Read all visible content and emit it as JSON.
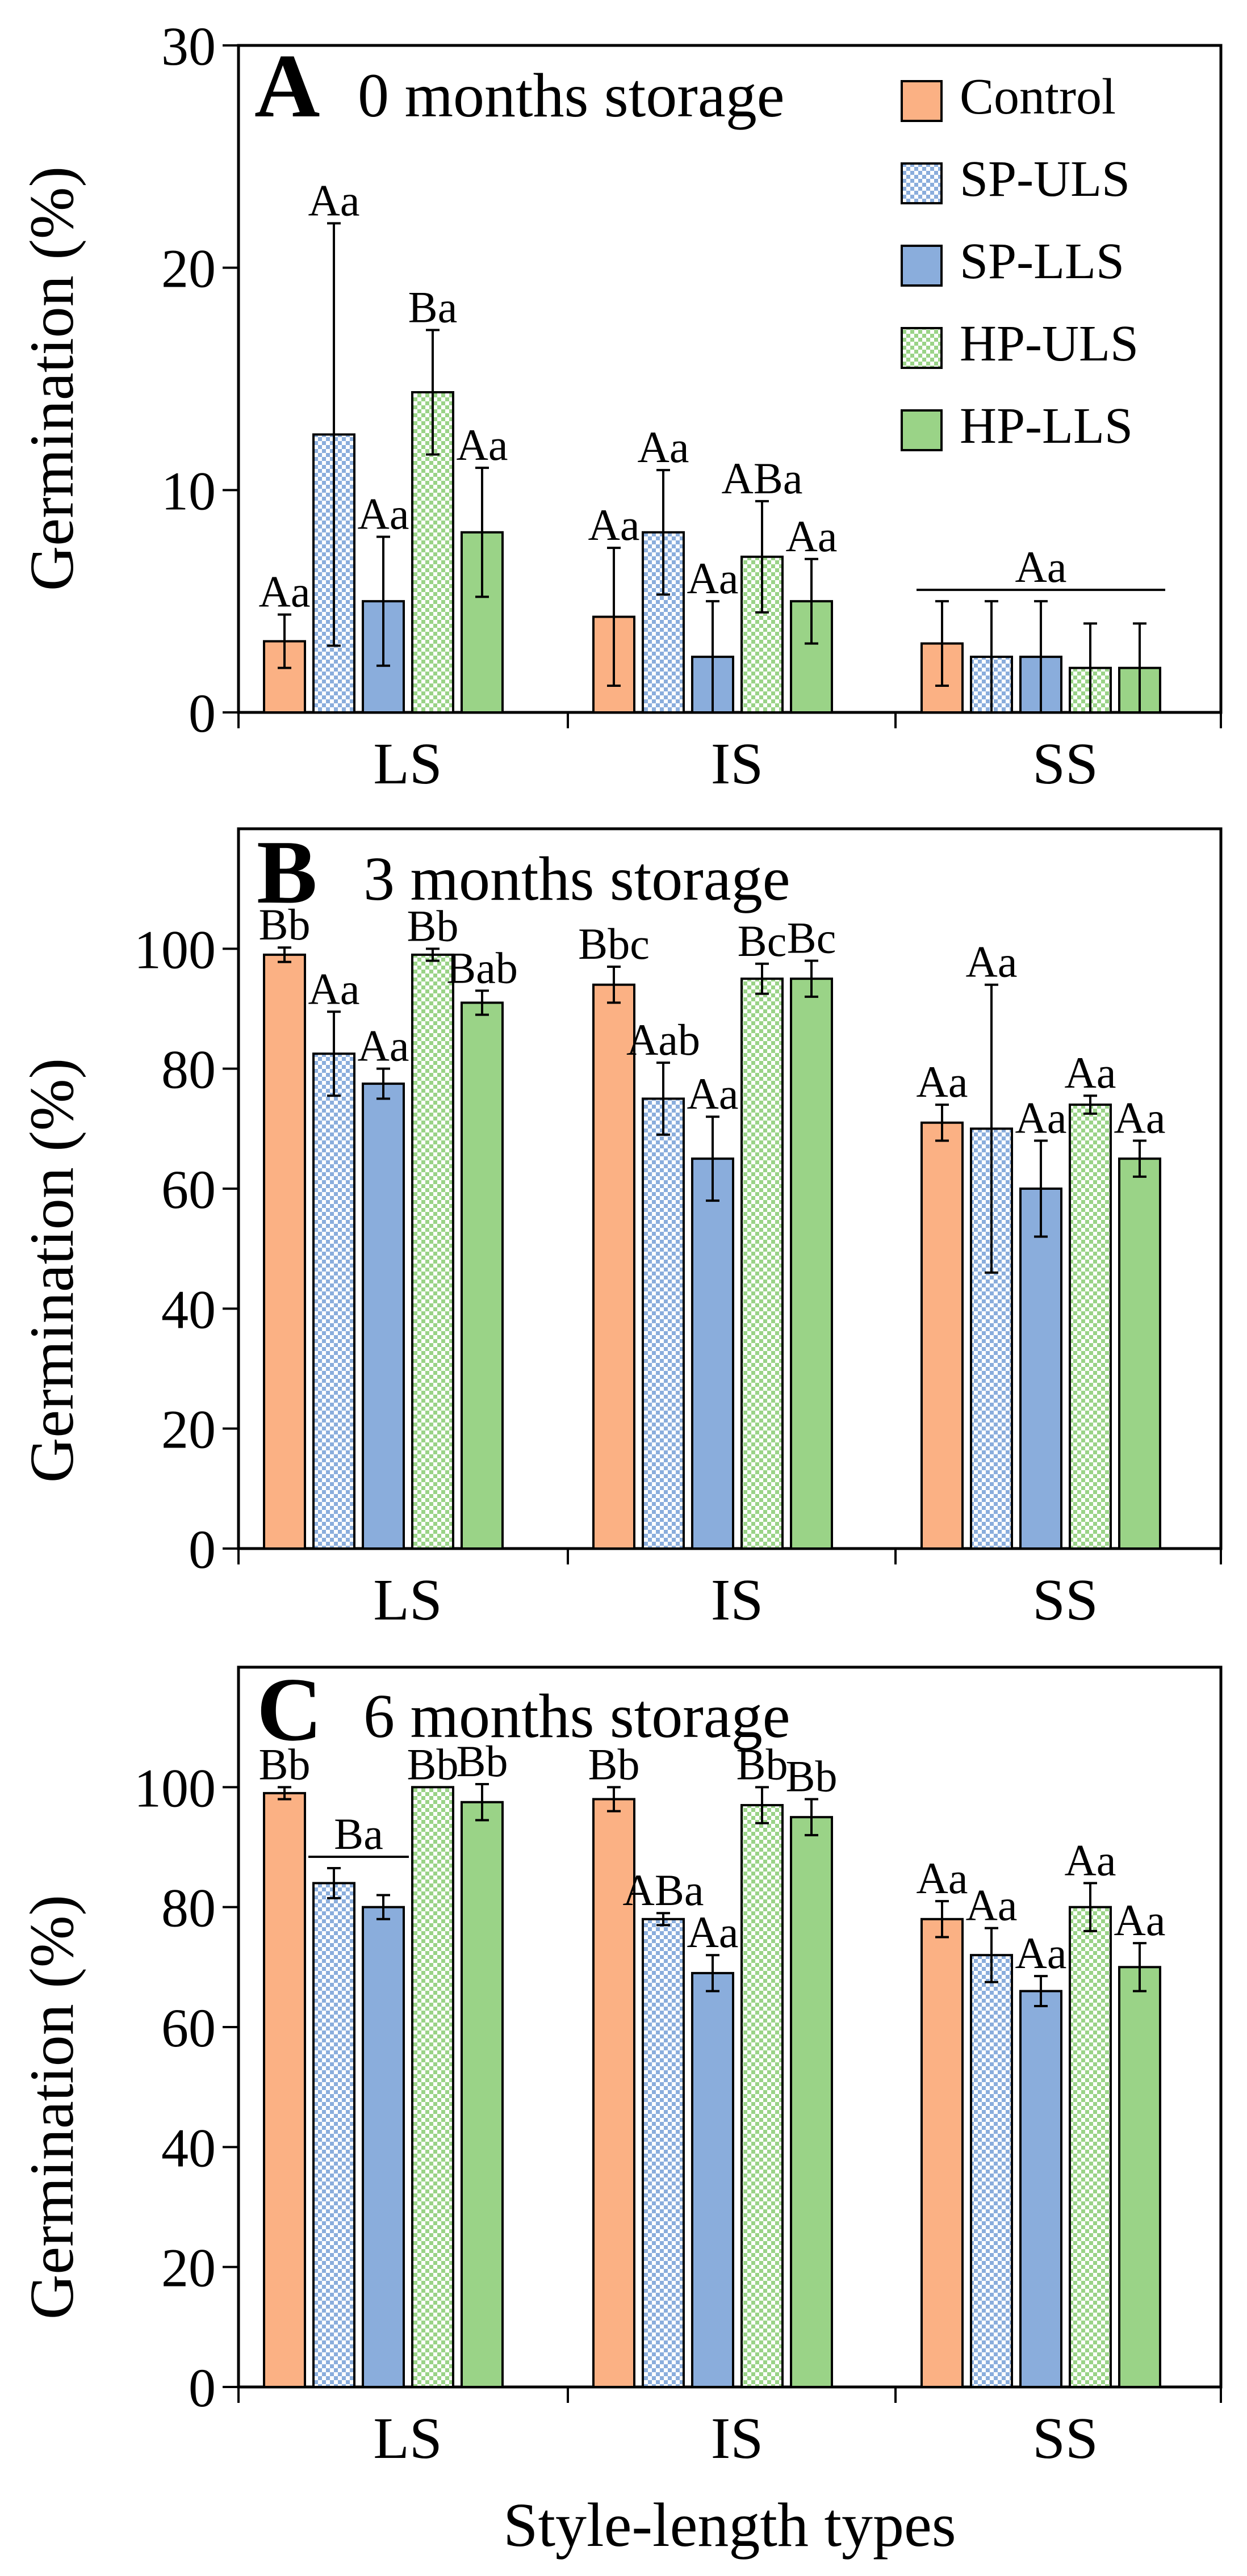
{
  "xlabel": "Style-length types",
  "colors": {
    "control": "#fbb184",
    "uls_blue": "#8aaddc",
    "lls_blue": "#8aaddc",
    "uls_green": "#9ad387",
    "lls_green": "#9ad387",
    "edge": "#000000"
  },
  "chart_data": [
    {
      "type": "bar",
      "panel": "A",
      "title": "0 months storage",
      "ylabel": "Germination (%)",
      "ylim": [
        0,
        30
      ],
      "yticks": [
        "0",
        "10",
        "20",
        "30"
      ],
      "categories": [
        "LS",
        "IS",
        "SS"
      ],
      "series": [
        {
          "name": "Control",
          "pattern": "solid",
          "color": "#fbb184",
          "values": [
            3.2,
            4.3,
            3.1
          ],
          "errors": [
            1.2,
            3.1,
            1.9
          ],
          "labels": [
            "Aa",
            "Aa",
            ""
          ]
        },
        {
          "name": "SP-ULS",
          "pattern": "check",
          "color": "#8aaddc",
          "values": [
            12.5,
            8.1,
            2.5
          ],
          "errors": [
            9.5,
            2.8,
            2.5
          ],
          "labels": [
            "Aa",
            "Aa",
            ""
          ]
        },
        {
          "name": "SP-LLS",
          "pattern": "solid",
          "color": "#8aaddc",
          "values": [
            5.0,
            2.5,
            2.5
          ],
          "errors": [
            2.9,
            2.5,
            2.5
          ],
          "labels": [
            "Aa",
            "Aa",
            ""
          ]
        },
        {
          "name": "HP-ULS",
          "pattern": "check",
          "color": "#9ad387",
          "values": [
            14.4,
            7.0,
            2.0
          ],
          "errors": [
            2.8,
            2.5,
            2.0
          ],
          "labels": [
            "Ba",
            "ABa",
            ""
          ]
        },
        {
          "name": "HP-LLS",
          "pattern": "solid",
          "color": "#9ad387",
          "values": [
            8.1,
            5.0,
            2.0
          ],
          "errors": [
            2.9,
            1.9,
            2.0
          ],
          "labels": [
            "Aa",
            "Aa",
            ""
          ]
        }
      ],
      "group_labels": [
        {
          "category": "SS",
          "from": 0,
          "to": 4,
          "text": "Aa"
        }
      ],
      "legend": {
        "position": "top-right",
        "entries": [
          "Control",
          "SP-ULS",
          "SP-LLS",
          "HP-ULS",
          "HP-LLS"
        ]
      }
    },
    {
      "type": "bar",
      "panel": "B",
      "title": "3 months storage",
      "ylabel": "Germination (%)",
      "ylim": [
        0,
        120
      ],
      "yticks": [
        "0",
        "20",
        "40",
        "60",
        "80",
        "100"
      ],
      "categories": [
        "LS",
        "IS",
        "SS"
      ],
      "series": [
        {
          "name": "Control",
          "pattern": "solid",
          "color": "#fbb184",
          "values": [
            99,
            94,
            71
          ],
          "errors": [
            1.2,
            3,
            3
          ],
          "labels": [
            "Bb",
            "Bbc",
            "Aa"
          ]
        },
        {
          "name": "SP-ULS",
          "pattern": "check",
          "color": "#8aaddc",
          "values": [
            82.5,
            75,
            70
          ],
          "errors": [
            7,
            6,
            24
          ],
          "labels": [
            "Aa",
            "Aab",
            "Aa"
          ]
        },
        {
          "name": "SP-LLS",
          "pattern": "solid",
          "color": "#8aaddc",
          "values": [
            77.5,
            65,
            60
          ],
          "errors": [
            2.5,
            7,
            8
          ],
          "labels": [
            "Aa",
            "Aa",
            "Aa"
          ]
        },
        {
          "name": "HP-ULS",
          "pattern": "check",
          "color": "#9ad387",
          "values": [
            99,
            95,
            74
          ],
          "errors": [
            1,
            2.5,
            1.5
          ],
          "labels": [
            "Bb",
            "Bc",
            "Aa"
          ]
        },
        {
          "name": "HP-LLS",
          "pattern": "solid",
          "color": "#9ad387",
          "values": [
            91,
            95,
            65
          ],
          "errors": [
            2,
            3,
            3
          ],
          "labels": [
            "Bab",
            "Bc",
            "Aa"
          ]
        }
      ],
      "group_labels": []
    },
    {
      "type": "bar",
      "panel": "C",
      "title": "6 months storage",
      "ylabel": "Germination (%)",
      "ylim": [
        0,
        120
      ],
      "yticks": [
        "0",
        "20",
        "40",
        "60",
        "80",
        "100"
      ],
      "categories": [
        "LS",
        "IS",
        "SS"
      ],
      "series": [
        {
          "name": "Control",
          "pattern": "solid",
          "color": "#fbb184",
          "values": [
            99,
            98,
            78
          ],
          "errors": [
            1,
            2,
            3
          ],
          "labels": [
            "Bb",
            "Bb",
            "Aa"
          ]
        },
        {
          "name": "SP-ULS",
          "pattern": "check",
          "color": "#8aaddc",
          "values": [
            84,
            78,
            72
          ],
          "errors": [
            2.5,
            1,
            4.5
          ],
          "labels": [
            "",
            "ABa",
            "Aa"
          ]
        },
        {
          "name": "SP-LLS",
          "pattern": "solid",
          "color": "#8aaddc",
          "values": [
            80,
            69,
            66
          ],
          "errors": [
            2,
            3,
            2.5
          ],
          "labels": [
            "",
            "Aa",
            "Aa"
          ]
        },
        {
          "name": "HP-ULS",
          "pattern": "check",
          "color": "#9ad387",
          "values": [
            100,
            97,
            80
          ],
          "errors": [
            0,
            3,
            4
          ],
          "labels": [
            "Bb",
            "Bb",
            "Aa"
          ]
        },
        {
          "name": "HP-LLS",
          "pattern": "solid",
          "color": "#9ad387",
          "values": [
            97.5,
            95,
            70
          ],
          "errors": [
            3,
            3,
            4
          ],
          "labels": [
            "Bb",
            "Bb",
            "Aa"
          ]
        }
      ],
      "group_labels": [
        {
          "category": "LS",
          "from": 1,
          "to": 2,
          "text": "Ba"
        }
      ]
    }
  ]
}
